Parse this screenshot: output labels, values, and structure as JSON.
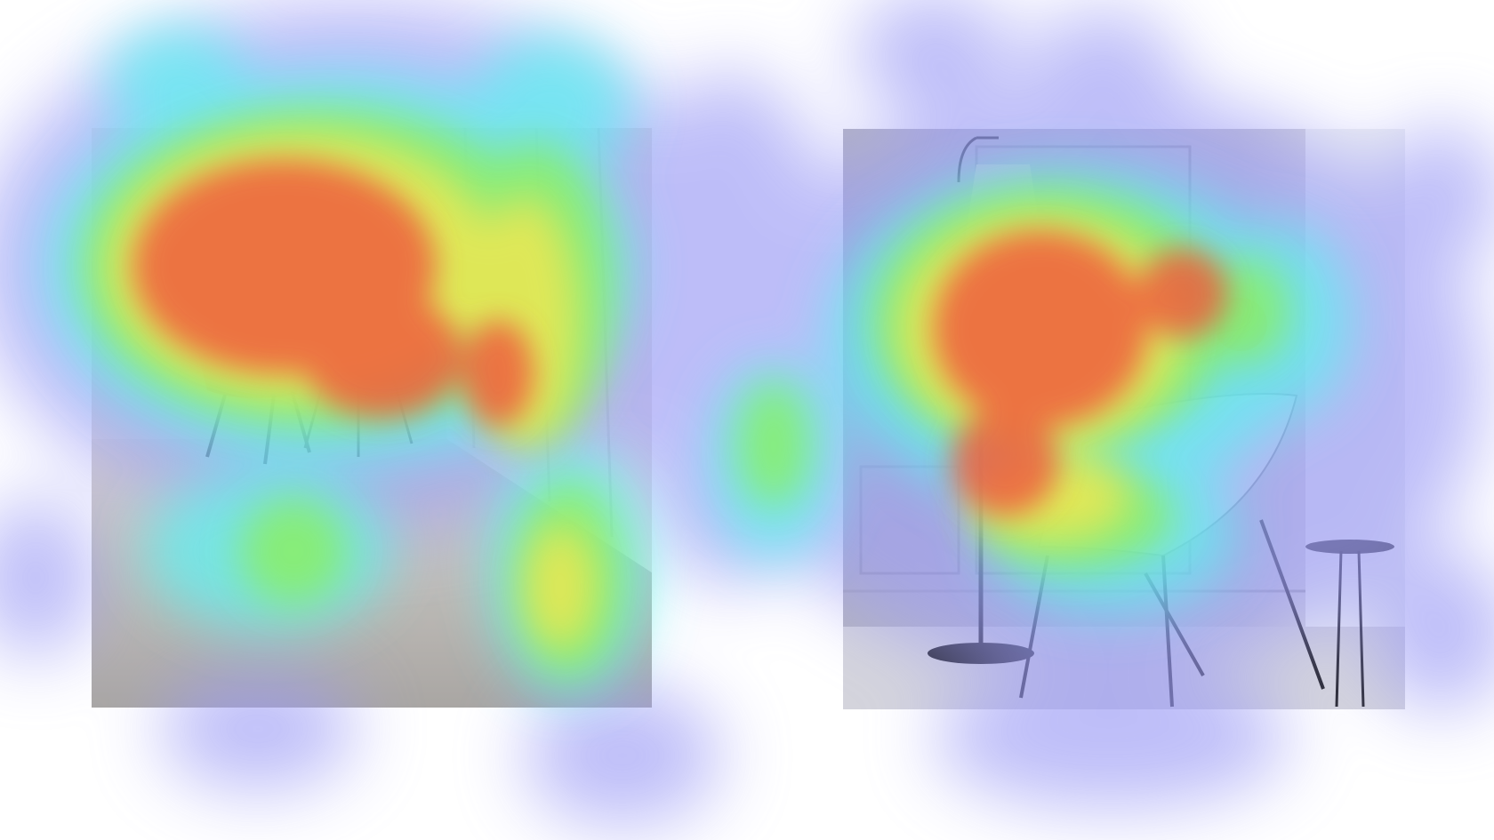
{
  "figure": {
    "description_hidden": "",
    "colors": {
      "background": "#ffffff",
      "heat_low": "#9b9bf5",
      "heat_mid_low": "#5ff0f0",
      "heat_mid": "#8cf05a",
      "heat_mid_high": "#f5e650",
      "heat_high": "#f05a3c",
      "left_wall": "#e9e6e1",
      "left_floor": "#c9c6c2",
      "left_accent": "#e0603a",
      "right_wall": "#bdbdc6",
      "right_floor": "#d6d6de",
      "right_lamp": "#2a2a33"
    },
    "panels": [
      {
        "name": "left-photo",
        "scene": "room-with-orange-chair-and-tripod-lamp"
      },
      {
        "name": "right-photo",
        "scene": "room-with-floor-lamp-chair-and-side-table"
      }
    ]
  }
}
